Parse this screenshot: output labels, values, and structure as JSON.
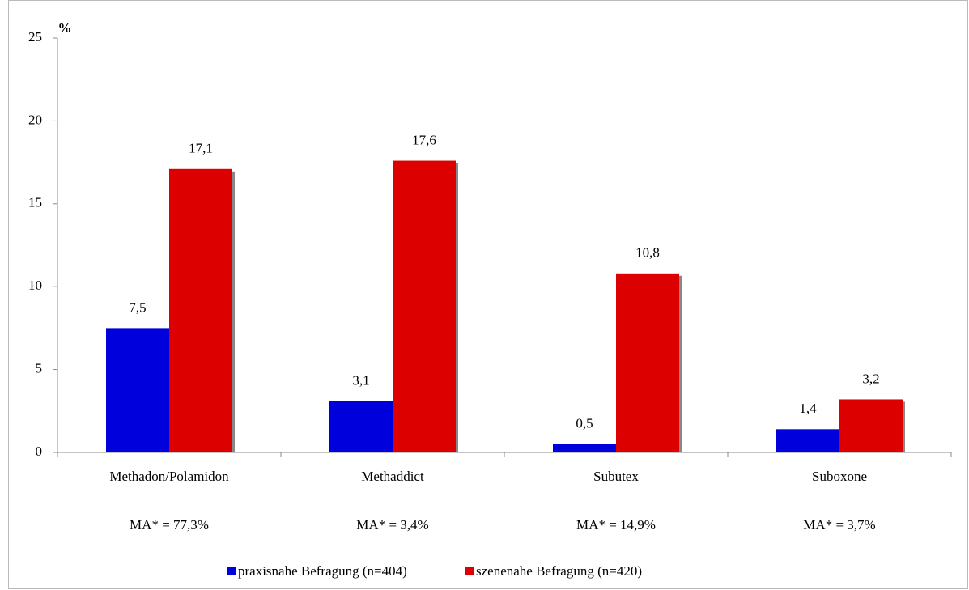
{
  "chart_data": {
    "type": "bar",
    "y_label": "%",
    "categories": [
      "Methadon/Polamidon",
      "Methaddict",
      "Subutex",
      "Suboxone"
    ],
    "annotations": [
      "MA* = 77,3%",
      "MA* = 3,4%",
      "MA* = 14,9%",
      "MA* = 3,7%"
    ],
    "series": [
      {
        "name": "praxisnahe Befragung (n=404)",
        "color": "#0000dd",
        "values": [
          7.5,
          3.1,
          0.5,
          1.4
        ],
        "value_labels": [
          "7,5",
          "3,1",
          "0,5",
          "1,4"
        ]
      },
      {
        "name": "szenenahe Befragung (n=420)",
        "color": "#dd0000",
        "values": [
          17.1,
          17.6,
          10.8,
          3.2
        ],
        "value_labels": [
          "17,1",
          "17,6",
          "10,8",
          "3,2"
        ]
      }
    ],
    "ylim": [
      0,
      25
    ],
    "yticks": [
      0,
      5,
      10,
      15,
      20,
      25
    ],
    "grid": false,
    "legend": "bottom"
  }
}
